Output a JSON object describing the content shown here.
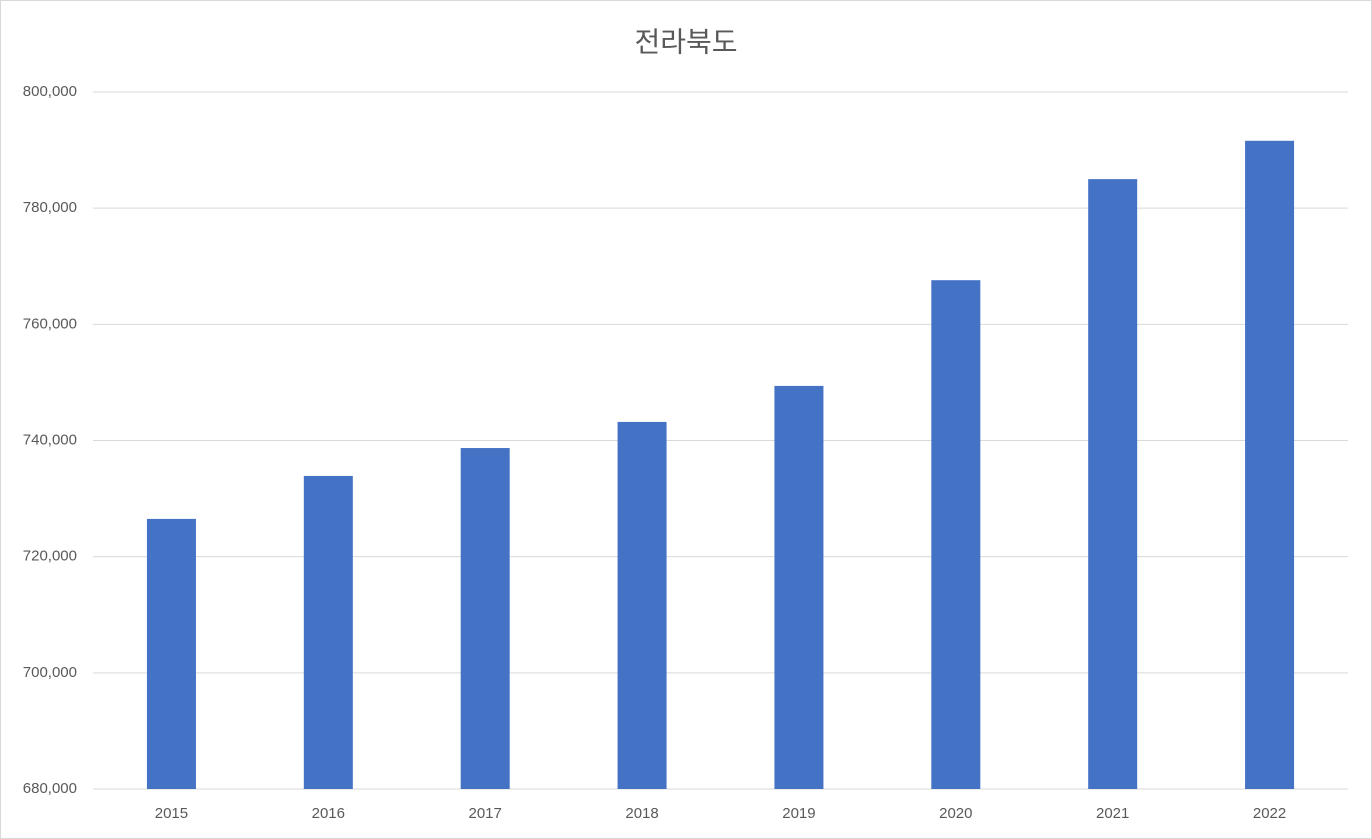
{
  "chart_data": {
    "type": "bar",
    "title": "전라북도",
    "categories": [
      "2015",
      "2016",
      "2017",
      "2018",
      "2019",
      "2020",
      "2021",
      "2022"
    ],
    "values": [
      726500,
      733900,
      738700,
      743200,
      749400,
      767600,
      785000,
      791600
    ],
    "color": "#4472c4",
    "ylim": [
      680000,
      800000
    ],
    "yticks": [
      {
        "value": 680000,
        "label": "680,000"
      },
      {
        "value": 700000,
        "label": "700,000"
      },
      {
        "value": 720000,
        "label": "720,000"
      },
      {
        "value": 740000,
        "label": "740,000"
      },
      {
        "value": 760000,
        "label": "760,000"
      },
      {
        "value": 780000,
        "label": "780,000"
      },
      {
        "value": 800000,
        "label": "800,000"
      }
    ],
    "grid": true
  }
}
